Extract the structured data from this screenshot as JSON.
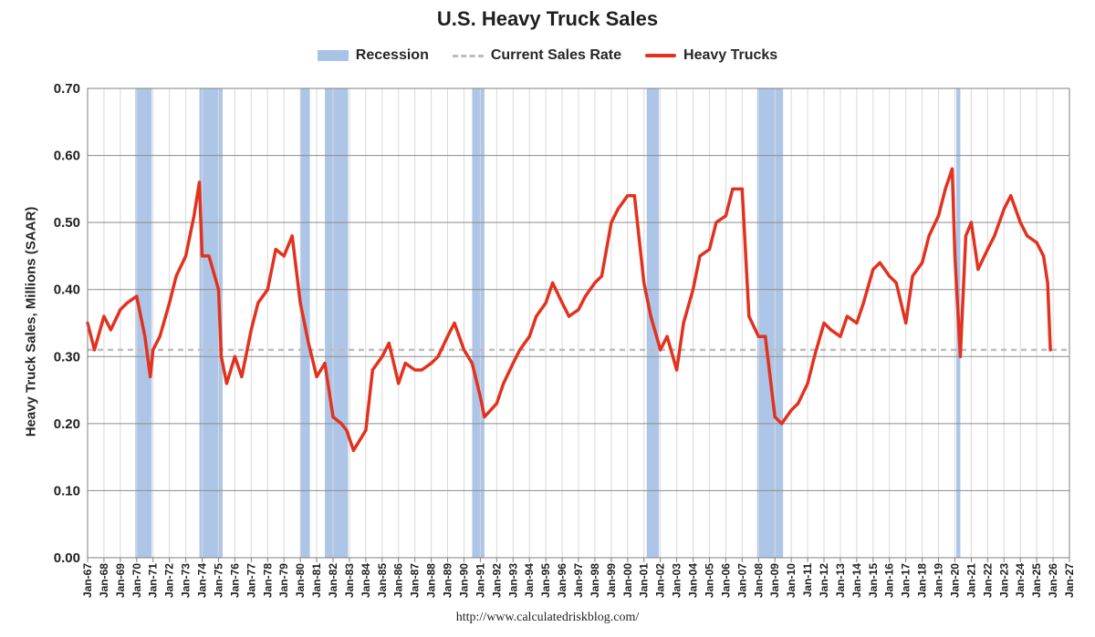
{
  "chart_data": {
    "type": "line",
    "title": "U.S. Heavy Truck Sales",
    "ylabel": "Heavy Truck Sales, Millions (SAAR)",
    "xlabel": "",
    "ylim": [
      0,
      0.7
    ],
    "y_ticks": [
      "0.00",
      "0.10",
      "0.20",
      "0.30",
      "0.40",
      "0.50",
      "0.60",
      "0.70"
    ],
    "x_ticks": [
      "Jan-67",
      "Jan-68",
      "Jan-69",
      "Jan-70",
      "Jan-71",
      "Jan-72",
      "Jan-73",
      "Jan-74",
      "Jan-75",
      "Jan-76",
      "Jan-77",
      "Jan-78",
      "Jan-79",
      "Jan-80",
      "Jan-81",
      "Jan-82",
      "Jan-83",
      "Jan-84",
      "Jan-85",
      "Jan-86",
      "Jan-87",
      "Jan-88",
      "Jan-89",
      "Jan-90",
      "Jan-91",
      "Jan-92",
      "Jan-93",
      "Jan-94",
      "Jan-95",
      "Jan-96",
      "Jan-97",
      "Jan-98",
      "Jan-99",
      "Jan-00",
      "Jan-01",
      "Jan-02",
      "Jan-03",
      "Jan-04",
      "Jan-05",
      "Jan-06",
      "Jan-07",
      "Jan-08",
      "Jan-09",
      "Jan-10",
      "Jan-11",
      "Jan-12",
      "Jan-13",
      "Jan-14",
      "Jan-15",
      "Jan-16",
      "Jan-17",
      "Jan-18",
      "Jan-19",
      "Jan-20",
      "Jan-21",
      "Jan-22",
      "Jan-23",
      "Jan-24",
      "Jan-25",
      "Jan-26",
      "Jan-27"
    ],
    "grid": true,
    "legend_position": "top-center",
    "legend": [
      {
        "label": "Recession",
        "kind": "band",
        "color": "#a9c3e6"
      },
      {
        "label": "Current Sales Rate",
        "kind": "dashed-line",
        "color": "#bdbdbd"
      },
      {
        "label": "Heavy Trucks",
        "kind": "line",
        "color": "#e2321f"
      }
    ],
    "current_sales_rate": 0.31,
    "recessions": [
      {
        "start": "Dec-69",
        "end": "Nov-70"
      },
      {
        "start": "Nov-73",
        "end": "Mar-75"
      },
      {
        "start": "Jan-80",
        "end": "Jul-80"
      },
      {
        "start": "Jul-81",
        "end": "Nov-82"
      },
      {
        "start": "Jul-90",
        "end": "Mar-91"
      },
      {
        "start": "Mar-01",
        "end": "Nov-01"
      },
      {
        "start": "Dec-07",
        "end": "Jun-09"
      },
      {
        "start": "Feb-20",
        "end": "Apr-20"
      }
    ],
    "series": [
      {
        "name": "Heavy Trucks",
        "color": "#e2321f",
        "x": [
          "Jan-67",
          "Jun-67",
          "Jan-68",
          "Jun-68",
          "Jan-69",
          "Jun-69",
          "Jan-70",
          "Jul-70",
          "Nov-70",
          "Jan-71",
          "Jun-71",
          "Jan-72",
          "Jun-72",
          "Jan-73",
          "Jul-73",
          "Nov-73",
          "Jan-74",
          "Jun-74",
          "Jan-75",
          "Mar-75",
          "Jul-75",
          "Jan-76",
          "Jun-76",
          "Jan-77",
          "Jun-77",
          "Jan-78",
          "Jul-78",
          "Jan-79",
          "Jul-79",
          "Jan-80",
          "Jul-80",
          "Jan-81",
          "Jul-81",
          "Jan-82",
          "Jul-82",
          "Nov-82",
          "Apr-83",
          "Jan-84",
          "Jun-84",
          "Jan-85",
          "Jun-85",
          "Jan-86",
          "Jun-86",
          "Jan-87",
          "Jun-87",
          "Jan-88",
          "Jun-88",
          "Jan-89",
          "Jun-89",
          "Jan-90",
          "Jul-90",
          "Jan-91",
          "Apr-91",
          "Jan-92",
          "Jun-92",
          "Jan-93",
          "Jun-93",
          "Jan-94",
          "Jun-94",
          "Jan-95",
          "Jun-95",
          "Jan-96",
          "Jun-96",
          "Jan-97",
          "Jun-97",
          "Jan-98",
          "Jun-98",
          "Jan-99",
          "Jun-99",
          "Jan-00",
          "Jun-00",
          "Jan-01",
          "Jun-01",
          "Jan-02",
          "Jun-02",
          "Jan-03",
          "Jun-03",
          "Jan-04",
          "Jun-04",
          "Jan-05",
          "Jun-05",
          "Jan-06",
          "Jun-06",
          "Jan-07",
          "Jun-07",
          "Jan-08",
          "Jun-08",
          "Jan-09",
          "Jun-09",
          "Jan-10",
          "Jun-10",
          "Jan-11",
          "Jun-11",
          "Jan-12",
          "Jun-12",
          "Jan-13",
          "Jun-13",
          "Jan-14",
          "Jun-14",
          "Jan-15",
          "Jun-15",
          "Jan-16",
          "Jun-16",
          "Jan-17",
          "Jun-17",
          "Jan-18",
          "Jun-18",
          "Jan-19",
          "Jun-19",
          "Nov-19",
          "Jan-20",
          "May-20",
          "Sep-20",
          "Jan-21",
          "Jun-21",
          "Jan-22",
          "Jun-22",
          "Jan-23",
          "Jun-23",
          "Jan-24",
          "Jun-24",
          "Jan-25",
          "Jun-25",
          "Sep-25",
          "Nov-25"
        ],
        "values": [
          0.35,
          0.31,
          0.36,
          0.34,
          0.37,
          0.38,
          0.39,
          0.33,
          0.27,
          0.31,
          0.33,
          0.38,
          0.42,
          0.45,
          0.51,
          0.56,
          0.45,
          0.45,
          0.4,
          0.3,
          0.26,
          0.3,
          0.27,
          0.34,
          0.38,
          0.4,
          0.46,
          0.45,
          0.48,
          0.38,
          0.32,
          0.27,
          0.29,
          0.21,
          0.2,
          0.19,
          0.16,
          0.19,
          0.28,
          0.3,
          0.32,
          0.26,
          0.29,
          0.28,
          0.28,
          0.29,
          0.3,
          0.33,
          0.35,
          0.31,
          0.29,
          0.24,
          0.21,
          0.23,
          0.26,
          0.29,
          0.31,
          0.33,
          0.36,
          0.38,
          0.41,
          0.38,
          0.36,
          0.37,
          0.39,
          0.41,
          0.42,
          0.5,
          0.52,
          0.54,
          0.54,
          0.41,
          0.36,
          0.31,
          0.33,
          0.28,
          0.35,
          0.4,
          0.45,
          0.46,
          0.5,
          0.51,
          0.55,
          0.55,
          0.36,
          0.33,
          0.33,
          0.21,
          0.2,
          0.22,
          0.23,
          0.26,
          0.3,
          0.35,
          0.34,
          0.33,
          0.36,
          0.35,
          0.38,
          0.43,
          0.44,
          0.42,
          0.41,
          0.35,
          0.42,
          0.44,
          0.48,
          0.51,
          0.55,
          0.58,
          0.45,
          0.3,
          0.48,
          0.5,
          0.43,
          0.46,
          0.48,
          0.52,
          0.54,
          0.5,
          0.48,
          0.47,
          0.45,
          0.41,
          0.31
        ]
      }
    ]
  },
  "source_text": "http://www.calculatedriskblog.com/"
}
